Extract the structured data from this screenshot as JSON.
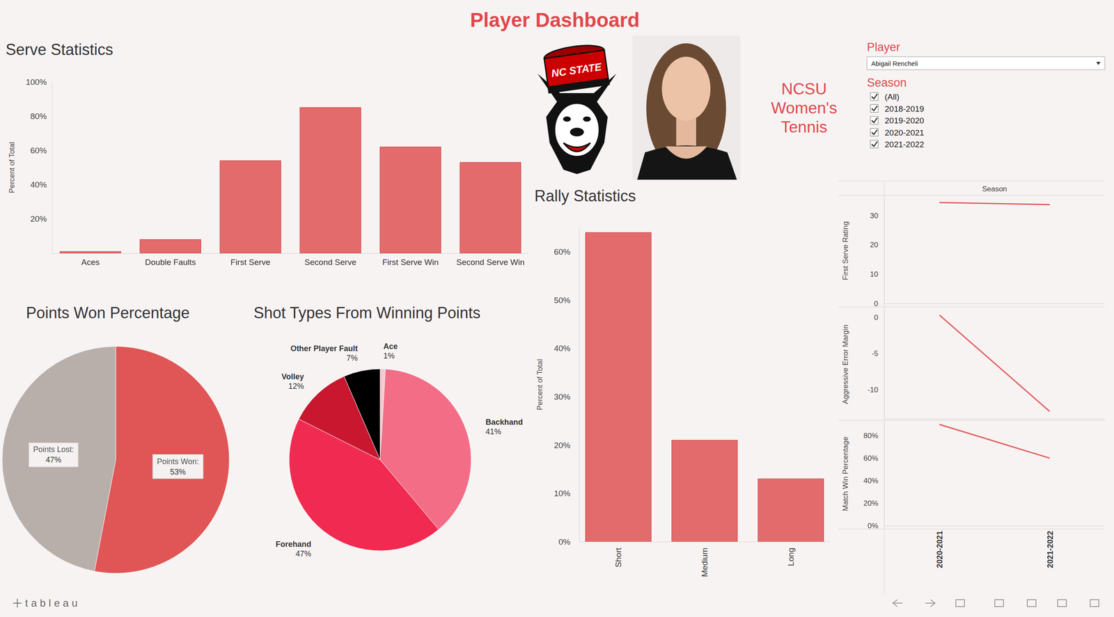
{
  "header": {
    "title": "Player Dashboard",
    "team": [
      "NCSU",
      "Women's",
      "Tennis"
    ],
    "logo_text": "NC STATE",
    "footer": "tableau"
  },
  "filters": {
    "player_label": "Player",
    "player": "Abigail Rencheli",
    "season_label": "Season",
    "seasons": [
      "(All)",
      "2018-2019",
      "2019-2020",
      "2020-2021",
      "2021-2022"
    ],
    "checked": [
      true,
      true,
      true,
      true,
      true
    ]
  },
  "chart_data": [
    {
      "type": "bar",
      "title": "Serve Statistics",
      "y_label": "Percent of Total",
      "categories": [
        "Aces",
        "Double Faults",
        "First Serve",
        "Second Serve",
        "First Serve Win",
        "Second Serve Win"
      ],
      "values": [
        1,
        8,
        54,
        85,
        62,
        53
      ],
      "color": "#e36b6b",
      "ylim": [
        0,
        100
      ],
      "yticks": [
        {
          "value": 20,
          "label": "20%"
        },
        {
          "value": 40,
          "label": "40%"
        },
        {
          "value": 60,
          "label": "60%"
        },
        {
          "value": 80,
          "label": "80%"
        },
        {
          "value": 100,
          "label": "100%"
        }
      ],
      "grid": false
    },
    {
      "type": "pie",
      "title": "Points Won Percentage",
      "categories": [
        "Points Won:",
        "Points Lost:"
      ],
      "values": [
        53,
        47
      ],
      "value_labels": [
        "53%",
        "47%"
      ],
      "colors": [
        "#e05555",
        "#b8afab"
      ],
      "data_labels": true
    },
    {
      "type": "pie",
      "title": "Shot Types From Winning Points",
      "categories": [
        "Ace",
        "Backhand",
        "Forehand",
        "Volley",
        "Other Player Fault"
      ],
      "values": [
        1,
        41,
        47,
        12,
        7
      ],
      "value_labels": [
        "1%",
        "41%",
        "47%",
        "12%",
        "7%"
      ],
      "colors": [
        "#f7c9d0",
        "#f26d85",
        "#f02a50",
        "#c8172f",
        "#000000"
      ],
      "data_labels": true
    },
    {
      "type": "bar",
      "title": "Rally Statistics",
      "y_label": "Percent of Total",
      "categories": [
        "Short",
        "Medium",
        "Long"
      ],
      "values": [
        64,
        21,
        13
      ],
      "color": "#e36b6b",
      "ylim": [
        0,
        65
      ],
      "yticks": [
        {
          "value": 0,
          "label": "0%"
        },
        {
          "value": 10,
          "label": "10%"
        },
        {
          "value": 20,
          "label": "20%"
        },
        {
          "value": 30,
          "label": "30%"
        },
        {
          "value": 40,
          "label": "40%"
        },
        {
          "value": 50,
          "label": "50%"
        },
        {
          "value": 60,
          "label": "60%"
        }
      ],
      "grid": false
    },
    {
      "type": "line",
      "x_label": "Season",
      "y_label": "First Serve Rating",
      "categories": [
        null,
        null
      ],
      "values": [
        34.4,
        33.7
      ],
      "color": "#e06060",
      "ylim": [
        0,
        36
      ],
      "yticks": [
        0,
        10,
        20,
        30
      ]
    },
    {
      "type": "line",
      "y_label": "Aggressive Error Margin",
      "categories": [
        null,
        null
      ],
      "values": [
        0.3,
        -13
      ],
      "color": "#e06060",
      "ylim": [
        -14,
        1
      ],
      "yticks": [
        0,
        -5,
        -10
      ]
    },
    {
      "type": "line",
      "y_label": "Match Win Percentage",
      "categories": [
        "2020-2021",
        "2021-2022"
      ],
      "values": [
        90,
        60
      ],
      "color": "#e06060",
      "ylim": [
        0,
        92
      ],
      "yticks": [
        {
          "value": 0,
          "label": "0%"
        },
        {
          "value": 20,
          "label": "20%"
        },
        {
          "value": 40,
          "label": "40%"
        },
        {
          "value": 60,
          "label": "60%"
        },
        {
          "value": 80,
          "label": "80%"
        }
      ]
    }
  ]
}
